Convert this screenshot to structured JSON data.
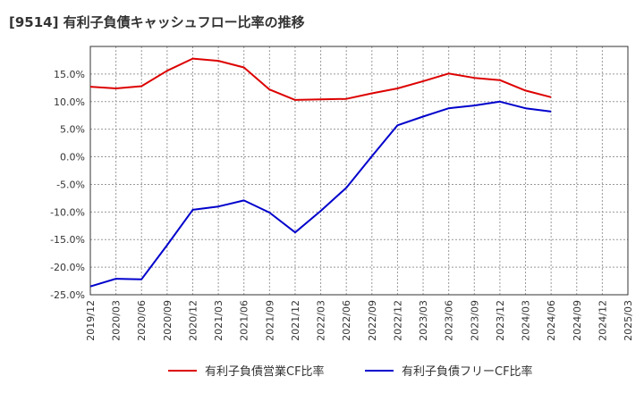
{
  "chart_data": {
    "type": "line",
    "title": "[9514]  有利子負債キャッシュフロー比率の推移",
    "xlabel": "",
    "ylabel": "",
    "x": [
      "2019/12",
      "2020/03",
      "2020/06",
      "2020/09",
      "2020/12",
      "2021/03",
      "2021/06",
      "2021/09",
      "2021/12",
      "2022/03",
      "2022/06",
      "2022/09",
      "2022/12",
      "2023/03",
      "2023/06",
      "2023/09",
      "2023/12",
      "2024/03",
      "2024/06",
      "2024/09",
      "2024/12",
      "2025/03"
    ],
    "ylim": [
      -25,
      20
    ],
    "yticks": [
      -25,
      -20,
      -15,
      -10,
      -5,
      0,
      5,
      10,
      15
    ],
    "ytick_labels": [
      "-25.0%",
      "-20.0%",
      "-15.0%",
      "-10.0%",
      "-5.0%",
      "0.0%",
      "5.0%",
      "10.0%",
      "15.0%"
    ],
    "grid": true,
    "legend_position": "bottom",
    "series": [
      {
        "name": "有利子負債営業CF比率",
        "color": "#dd0000",
        "values": [
          12.7,
          12.4,
          12.8,
          15.6,
          17.8,
          17.4,
          16.2,
          12.2,
          10.3,
          10.4,
          10.5,
          11.5,
          12.4,
          13.7,
          15.1,
          14.3,
          13.9,
          12.0,
          10.8,
          null,
          null,
          null
        ]
      },
      {
        "name": "有利子負債フリーCF比率",
        "color": "#0000cc",
        "values": [
          -23.5,
          -22.1,
          -22.2,
          -16.0,
          -9.6,
          -9.0,
          -7.9,
          -10.1,
          -13.7,
          -9.8,
          -5.6,
          0.1,
          5.7,
          7.3,
          8.8,
          9.3,
          10.0,
          8.8,
          8.2,
          null,
          null,
          null
        ]
      }
    ]
  }
}
